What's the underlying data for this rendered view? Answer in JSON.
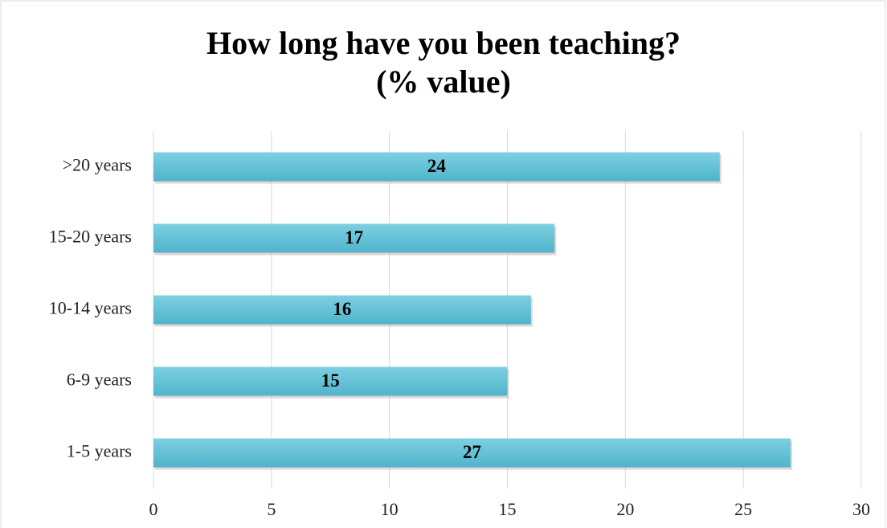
{
  "chart_data": {
    "type": "barh",
    "title": "How long have you been teaching?",
    "subtitle": "(% value)",
    "categories": [
      "1-5 years",
      "6-9 years",
      "10-14 years",
      "15-20 years",
      ">20 years"
    ],
    "values": [
      27,
      15,
      16,
      17,
      24
    ],
    "color": "#62c3d8",
    "xlim": [
      0,
      30
    ],
    "xticks": [
      0,
      5,
      10,
      15,
      20,
      25,
      30
    ],
    "grid": true
  }
}
